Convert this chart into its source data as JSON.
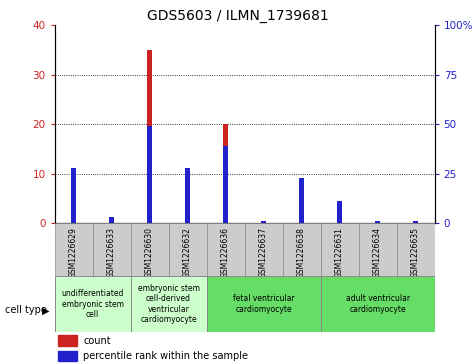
{
  "title": "GDS5603 / ILMN_1739681",
  "samples": [
    "GSM1226629",
    "GSM1226633",
    "GSM1226630",
    "GSM1226632",
    "GSM1226636",
    "GSM1226637",
    "GSM1226638",
    "GSM1226631",
    "GSM1226634",
    "GSM1226635"
  ],
  "count_values": [
    9,
    0,
    35,
    11,
    20,
    0,
    8,
    1,
    0,
    0
  ],
  "percentile_values": [
    28,
    3,
    49,
    28,
    39,
    1,
    23,
    11,
    1,
    1
  ],
  "ylim_left": [
    0,
    40
  ],
  "ylim_right": [
    0,
    100
  ],
  "yticks_left": [
    0,
    10,
    20,
    30,
    40
  ],
  "ytick_labels_left": [
    "0",
    "10",
    "20",
    "30",
    "40"
  ],
  "yticks_right": [
    0,
    25,
    50,
    75,
    100
  ],
  "ytick_labels_right": [
    "0",
    "25",
    "50",
    "75",
    "100%"
  ],
  "count_color": "#cc2222",
  "percentile_color": "#2222cc",
  "grid_color": "#000000",
  "cell_type_groups": [
    {
      "label": "undifferentiated\nembryonic stem\ncell",
      "start": 0,
      "end": 2,
      "color": "#ccffcc"
    },
    {
      "label": "embryonic stem\ncell-derived\nventricular\ncardiomyocyte",
      "start": 2,
      "end": 4,
      "color": "#ccffcc"
    },
    {
      "label": "fetal ventricular\ncardiomyocyte",
      "start": 4,
      "end": 7,
      "color": "#66dd66"
    },
    {
      "label": "adult ventricular\ncardiomyocyte",
      "start": 7,
      "end": 10,
      "color": "#66dd66"
    }
  ],
  "cell_type_label": "cell type",
  "legend_count_label": "count",
  "legend_percentile_label": "percentile rank within the sample",
  "tick_bg_color": "#cccccc",
  "bar_width": 0.12
}
